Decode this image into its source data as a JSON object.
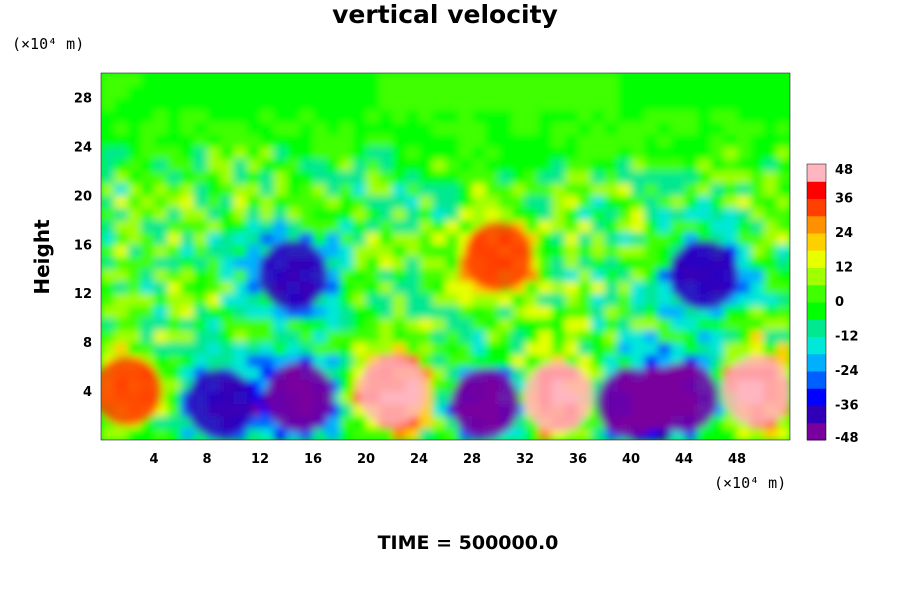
{
  "chart_data": {
    "type": "heatmap",
    "title": "vertical velocity",
    "xlabel": "",
    "ylabel": "Height",
    "x_unit": "(×10⁴ m)",
    "y_unit": "(×10⁴ m)",
    "xlim": [
      0,
      52
    ],
    "ylim": [
      0,
      30
    ],
    "x_ticks": [
      "4",
      "8",
      "12",
      "16",
      "20",
      "24",
      "28",
      "32",
      "36",
      "40",
      "44",
      "48"
    ],
    "y_ticks": [
      "4",
      "8",
      "12",
      "16",
      "20",
      "24",
      "28"
    ],
    "colorbar": {
      "min": -48,
      "max": 48,
      "ticks": [
        "48",
        "36",
        "24",
        "12",
        "0",
        "-12",
        "-24",
        "-36",
        "-48"
      ],
      "colors": [
        "#7a009e",
        "#3000b8",
        "#0000ff",
        "#0060ff",
        "#00b0ff",
        "#00e8d8",
        "#00e890",
        "#00ff00",
        "#40ff00",
        "#a0ff00",
        "#e8ff00",
        "#ffd000",
        "#ff9000",
        "#ff4000",
        "#ff0000",
        "#ffb6c1"
      ]
    },
    "features": [
      {
        "label": "updraft",
        "x": 2,
        "y": 4,
        "value": 30
      },
      {
        "label": "downdraft",
        "x": 9,
        "y": 3,
        "value": -40
      },
      {
        "label": "downdraft",
        "x": 15,
        "y": 3.5,
        "value": -50
      },
      {
        "label": "updraft",
        "x": 22,
        "y": 4,
        "value": 50
      },
      {
        "label": "downdraft",
        "x": 29,
        "y": 3,
        "value": -50
      },
      {
        "label": "updraft",
        "x": 34.5,
        "y": 3.5,
        "value": 50
      },
      {
        "label": "downdraft",
        "x": 40,
        "y": 3,
        "value": -48
      },
      {
        "label": "downdraft",
        "x": 44,
        "y": 3.5,
        "value": -48
      },
      {
        "label": "updraft",
        "x": 49.5,
        "y": 4,
        "value": 50
      },
      {
        "label": "downdraft",
        "x": 14.5,
        "y": 13.5,
        "value": -40
      },
      {
        "label": "downdraft",
        "x": 45.5,
        "y": 13.5,
        "value": -40
      },
      {
        "label": "updraft",
        "x": 30,
        "y": 15,
        "value": 30
      }
    ]
  },
  "footer": {
    "time_label": "TIME = 500000.0"
  }
}
